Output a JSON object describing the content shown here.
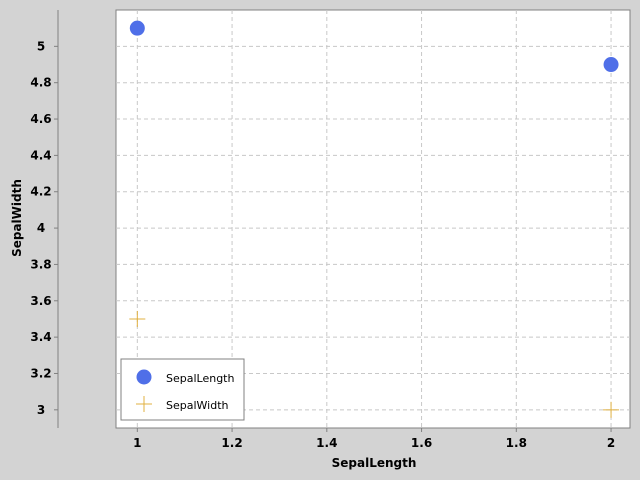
{
  "chart_data": {
    "type": "scatter",
    "title": "",
    "xlabel": "SepalLength",
    "ylabel": "SepalWidth",
    "xlim": [
      0.955,
      2.04
    ],
    "ylim": [
      2.9,
      5.2
    ],
    "x_ticks": [
      "1",
      "1.2",
      "1.4",
      "1.6",
      "1.8",
      "2"
    ],
    "y_ticks": [
      "3",
      "3.2",
      "3.4",
      "3.6",
      "3.8",
      "4",
      "4.2",
      "4.4",
      "4.6",
      "4.8",
      "5"
    ],
    "x_tick_values": [
      1,
      1.2,
      1.4,
      1.6,
      1.8,
      2
    ],
    "y_tick_values": [
      3,
      3.2,
      3.4,
      3.6,
      3.8,
      4,
      4.2,
      4.4,
      4.6,
      4.8,
      5
    ],
    "grid": true,
    "legend_position": "bottom-left",
    "series": [
      {
        "name": "SepalLength",
        "marker": "circle",
        "color": "#4f6fe8",
        "points": [
          {
            "x": 1,
            "y": 5.1
          },
          {
            "x": 2,
            "y": 4.9
          }
        ]
      },
      {
        "name": "SepalWidth",
        "marker": "plus",
        "color": "#e0b040",
        "points": [
          {
            "x": 1,
            "y": 3.5
          },
          {
            "x": 2,
            "y": 3.0
          }
        ]
      }
    ]
  },
  "colors": {
    "background": "#d3d3d3",
    "plot_background": "#ffffff",
    "grid": "#c8c8c8",
    "axis": "#808080"
  }
}
